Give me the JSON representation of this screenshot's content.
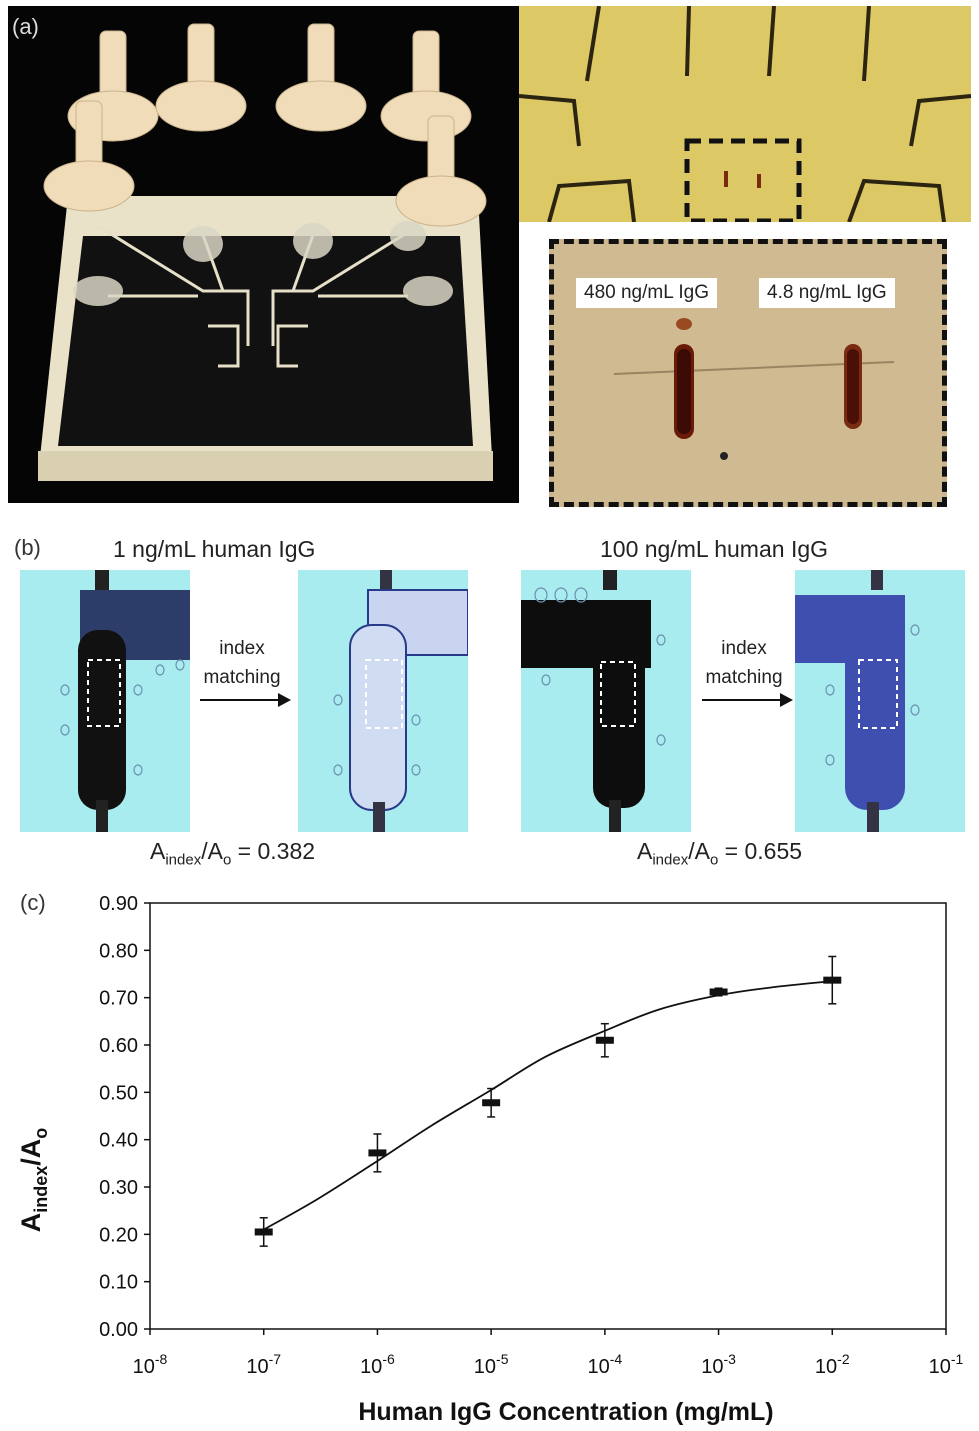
{
  "panel_a": {
    "letter": "(a)",
    "callout_left": "480 ng/mL IgG",
    "callout_right": "4.8 ng/mL IgG"
  },
  "panel_b": {
    "letter": "(b)",
    "left_title": "1 ng/mL human IgG",
    "right_title": "100 ng/mL human IgG",
    "arrow_label_line1": "index",
    "arrow_label_line2": "matching",
    "ratio_A": "A",
    "ratio_sub_index": "index",
    "ratio_slash_A": "/A",
    "ratio_sub_o": "o",
    "left_ratio_value": " = 0.382",
    "right_ratio_value": " = 0.655",
    "colors": {
      "microscope_bg": "#a8ecef",
      "channel_dark": "#111111",
      "channel_blue": "#3f4fb0"
    }
  },
  "panel_c": {
    "letter": "(c)"
  },
  "chart_data": {
    "type": "scatter",
    "x_scale": "log",
    "xlabel": "Human IgG Concentration (mg/mL)",
    "ylabel_main": "A",
    "ylabel_sub_index": "index",
    "ylabel_slash": "/A",
    "ylabel_sub_o": "o",
    "xlim": [
      1e-08,
      0.1
    ],
    "ylim": [
      0.0,
      0.9
    ],
    "x_ticks": [
      {
        "base": "10",
        "exp": "-8"
      },
      {
        "base": "10",
        "exp": "-7"
      },
      {
        "base": "10",
        "exp": "-6"
      },
      {
        "base": "10",
        "exp": "-5"
      },
      {
        "base": "10",
        "exp": "-4"
      },
      {
        "base": "10",
        "exp": "-3"
      },
      {
        "base": "10",
        "exp": "-2"
      },
      {
        "base": "10",
        "exp": "-1"
      }
    ],
    "y_ticks": [
      "0.00",
      "0.10",
      "0.20",
      "0.30",
      "0.40",
      "0.50",
      "0.60",
      "0.70",
      "0.80",
      "0.90"
    ],
    "x": [
      1e-07,
      1e-06,
      1e-05,
      0.0001,
      0.001,
      0.01
    ],
    "y": [
      0.205,
      0.372,
      0.478,
      0.61,
      0.712,
      0.737
    ],
    "y_err": [
      0.03,
      0.04,
      0.03,
      0.035,
      0.008,
      0.05
    ],
    "fit_curve": [
      [
        1e-07,
        0.21
      ],
      [
        3e-07,
        0.275
      ],
      [
        1e-06,
        0.355
      ],
      [
        3e-06,
        0.43
      ],
      [
        1e-05,
        0.505
      ],
      [
        3e-05,
        0.575
      ],
      [
        0.0001,
        0.63
      ],
      [
        0.0003,
        0.675
      ],
      [
        0.001,
        0.705
      ],
      [
        0.003,
        0.722
      ],
      [
        0.01,
        0.735
      ]
    ],
    "grid": false,
    "legend": "none"
  }
}
